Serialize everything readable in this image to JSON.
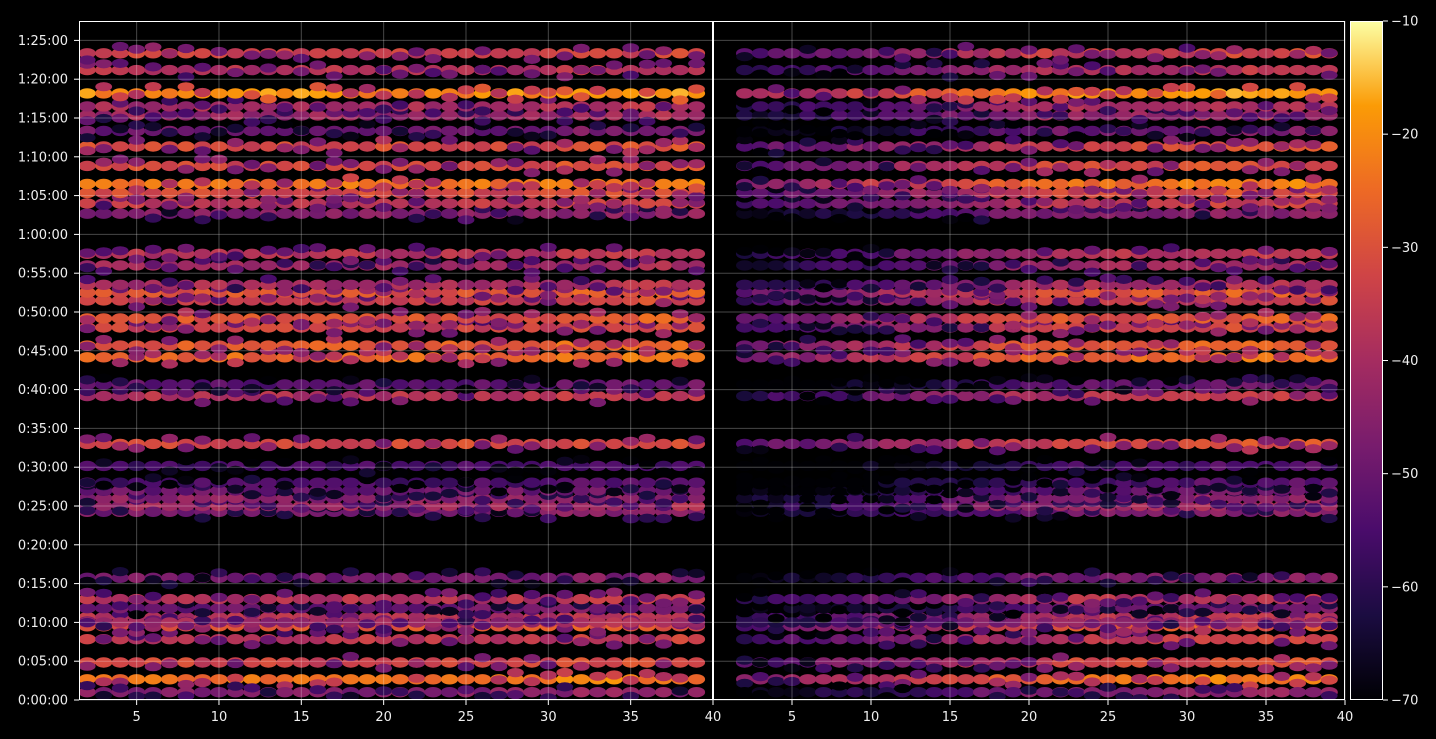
{
  "chart_data": {
    "type": "heatmap",
    "colormap": "inferno",
    "panels": [
      {
        "name": "",
        "x_range": [
          1.5,
          40
        ],
        "x_ticks": [
          5,
          10,
          15,
          20,
          25,
          30,
          35,
          40
        ]
      },
      {
        "name": "",
        "x_range": [
          0,
          40
        ],
        "x_ticks": [
          5,
          10,
          15,
          20,
          25,
          30,
          35,
          40
        ]
      }
    ],
    "y_axis": {
      "range_seconds": [
        0,
        5250
      ],
      "tick_seconds": [
        0,
        300,
        600,
        900,
        1200,
        1500,
        1800,
        2100,
        2400,
        2700,
        3000,
        3300,
        3600,
        3900,
        4200,
        4500,
        4800,
        5100
      ],
      "tick_labels": [
        "0:00:00",
        "0:05:00",
        "0:10:00",
        "0:15:00",
        "0:20:00",
        "0:25:00",
        "0:30:00",
        "0:35:00",
        "0:40:00",
        "0:45:00",
        "0:50:00",
        "0:55:00",
        "1:00:00",
        "1:05:00",
        "1:10:00",
        "1:15:00",
        "1:20:00",
        "1:25:00"
      ]
    },
    "colorbar": {
      "range": [
        -70,
        -10
      ],
      "ticks": [
        -70,
        -60,
        -50,
        -40,
        -30,
        -20,
        -10
      ],
      "tick_labels": [
        "−70",
        "−60",
        "−50",
        "−40",
        "−30",
        "−20",
        "−10"
      ]
    },
    "bands": [
      {
        "t": 160,
        "level": -24
      },
      {
        "t": 60,
        "level": -46
      },
      {
        "t": 290,
        "level": -33
      },
      {
        "t": 470,
        "level": -36
      },
      {
        "t": 570,
        "level": -30
      },
      {
        "t": 640,
        "level": -38
      },
      {
        "t": 600,
        "level": -42
      },
      {
        "t": 710,
        "level": -50
      },
      {
        "t": 780,
        "level": -38
      },
      {
        "t": 945,
        "level": -48
      },
      {
        "t": 1455,
        "level": -48
      },
      {
        "t": 1500,
        "level": -42
      },
      {
        "t": 1560,
        "level": -45
      },
      {
        "t": 1620,
        "level": -50
      },
      {
        "t": 1680,
        "level": -55
      },
      {
        "t": 1810,
        "level": -56
      },
      {
        "t": 1980,
        "level": -32
      },
      {
        "t": 2350,
        "level": -38
      },
      {
        "t": 2440,
        "level": -52
      },
      {
        "t": 2650,
        "level": -26
      },
      {
        "t": 2740,
        "level": -28
      },
      {
        "t": 2880,
        "level": -34
      },
      {
        "t": 2950,
        "level": -30
      },
      {
        "t": 3090,
        "level": -34
      },
      {
        "t": 3150,
        "level": -30
      },
      {
        "t": 3210,
        "level": -40
      },
      {
        "t": 3360,
        "level": -42
      },
      {
        "t": 3450,
        "level": -38
      },
      {
        "t": 3760,
        "level": -46
      },
      {
        "t": 3840,
        "level": -36
      },
      {
        "t": 3920,
        "level": -32
      },
      {
        "t": 3990,
        "level": -24
      },
      {
        "t": 4130,
        "level": -32
      },
      {
        "t": 4280,
        "level": -32
      },
      {
        "t": 4400,
        "level": -50
      },
      {
        "t": 4520,
        "level": -42
      },
      {
        "t": 4590,
        "level": -40
      },
      {
        "t": 4690,
        "level": -20
      },
      {
        "t": 4870,
        "level": -38
      },
      {
        "t": 5000,
        "level": -34
      }
    ]
  }
}
